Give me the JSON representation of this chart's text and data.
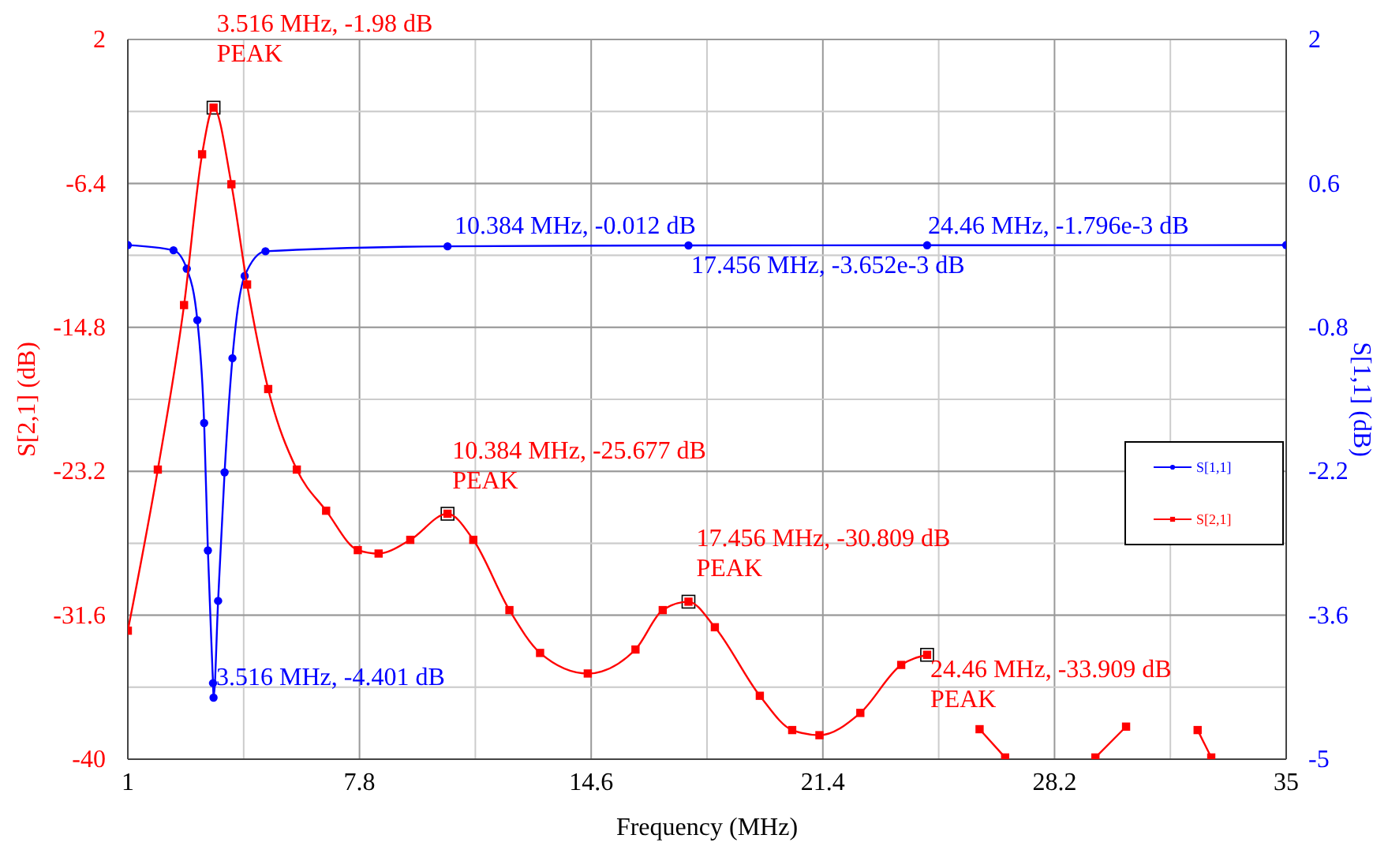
{
  "chart_data": {
    "type": "line",
    "xlabel": "Frequency (MHz)",
    "ylabel": "S[2,1] (dB)",
    "y2label": "S[1,1] (dB)",
    "xlim": [
      1,
      35
    ],
    "xticks": [
      1,
      {
        "value": 4.4,
        "label": null
      },
      7.8,
      {
        "value": 11.2,
        "label": null
      },
      14.6,
      {
        "value": 18,
        "label": null
      },
      21.4,
      {
        "value": 24.8,
        "label": null
      },
      28.2,
      {
        "value": 31.6,
        "label": null
      },
      35
    ],
    "ylim": [
      -40,
      2
    ],
    "yticks": [
      -40,
      {
        "value": -35.8,
        "label": null
      },
      -31.6,
      {
        "value": -27.4,
        "label": null
      },
      -23.2,
      {
        "value": -19,
        "label": null
      },
      -14.8,
      {
        "value": -10.6,
        "label": null
      },
      -6.4,
      {
        "value": -2.2,
        "label": null
      },
      2
    ],
    "y2lim": [
      -5,
      2
    ],
    "y2ticks": [
      -5,
      {
        "value": -4.3,
        "label": null
      },
      -3.6,
      {
        "value": -2.9,
        "label": null
      },
      -2.2,
      {
        "value": -1.5,
        "label": null
      },
      -0.8,
      {
        "value": -0.1,
        "label": null
      },
      0.6,
      {
        "value": 1.3,
        "label": null
      },
      2
    ],
    "grid": true,
    "legend": "right",
    "line_style": "solid",
    "series": [
      {
        "name": "S[1,1]",
        "color": "#0000ff",
        "axis": "y2",
        "marker": "circle",
        "x": [
          1,
          2.34,
          2.73,
          3.04,
          3.24,
          3.35,
          3.5,
          3.516,
          3.65,
          3.84,
          4.07,
          4.43,
          5.04,
          10.384,
          17.456,
          24.46,
          35
        ],
        "values": [
          0,
          -0.05,
          -0.23,
          -0.73,
          -1.73,
          -2.97,
          -4.26,
          -4.401,
          -3.46,
          -2.21,
          -1.1,
          -0.3,
          -0.06,
          -0.012,
          -0.003652,
          -0.001796,
          0
        ]
      },
      {
        "name": "S[2,1]",
        "color": "#ff0000",
        "marker": "square",
        "x": [
          1,
          1.88,
          2.65,
          3.18,
          3.516,
          4.04,
          4.5,
          5.12,
          5.96,
          6.82,
          7.75,
          8.36,
          9.29,
          10.384,
          11.14,
          12.2,
          13.1,
          14.5,
          15.9,
          16.7,
          17.456,
          18.23,
          19.55,
          20.5,
          21.3,
          22.5,
          23.7,
          24.46,
          25.2,
          26.0,
          26.75,
          28,
          29.4,
          30.3,
          31.1,
          32.4,
          32.8
        ],
        "values": [
          -32.5,
          -23.1,
          -13.5,
          -4.7,
          -1.98,
          -6.45,
          -12.3,
          -18.4,
          -23.1,
          -25.5,
          -27.8,
          -28.0,
          -27.2,
          -25.677,
          -27.2,
          -31.3,
          -33.8,
          -35.0,
          -33.6,
          -31.3,
          -30.809,
          -32.3,
          -36.3,
          -38.3,
          -38.6,
          -37.3,
          -34.5,
          -33.909,
          null,
          -38.25,
          -39.9,
          null,
          -39.9,
          -38.1,
          null,
          -38.3,
          -39.9
        ]
      }
    ],
    "annotations": [
      {
        "text": "3.516 MHz, -1.98 dB\nPEAK",
        "x": 3.516,
        "y": -1.98
      },
      {
        "text": "10.384 MHz, -25.677 dB\nPEAK",
        "x": 10.384,
        "y": -25.677
      },
      {
        "text": "17.456 MHz, -30.809 dB\nPEAK",
        "x": 17.456,
        "y": -30.809
      },
      {
        "text": "24.46 MHz, -33.909 dB\nPEAK",
        "x": 24.46,
        "y": -33.909
      },
      "3.516 MHz, -4.401 dB",
      "10.384 MHz, -0.012 dB",
      "17.456 MHz, -3.652e-3 dB",
      "24.46 MHz, -1.796e-3 dB"
    ]
  }
}
